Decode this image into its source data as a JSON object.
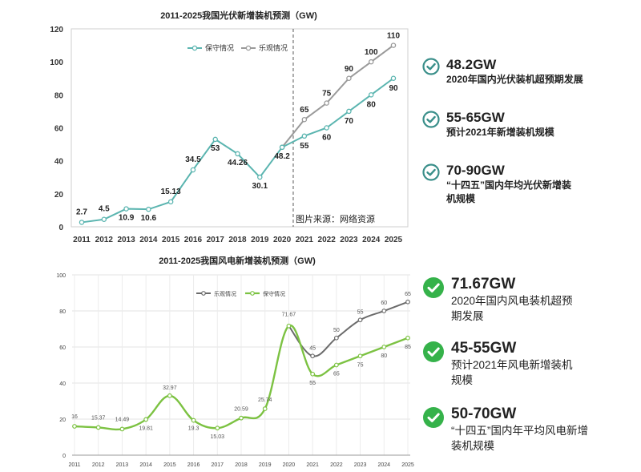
{
  "chart_data": [
    {
      "type": "line",
      "title": "2011-2025我国光伏新增装机预测（GW)",
      "categories": [
        "2011",
        "2012",
        "2013",
        "2014",
        "2015",
        "2016",
        "2017",
        "2018",
        "2019",
        "2020",
        "2021",
        "2022",
        "2023",
        "2024",
        "2025"
      ],
      "ylim": [
        0,
        120
      ],
      "yticks": [
        0,
        20,
        40,
        60,
        80,
        100,
        120
      ],
      "series": [
        {
          "name": "保守情况",
          "color": "#5bb5b0",
          "values": [
            2.7,
            4.5,
            10.9,
            10.6,
            15.13,
            34.5,
            53,
            44.26,
            30.1,
            48.2,
            55,
            60,
            70,
            80,
            90
          ]
        },
        {
          "name": "乐观情况",
          "color": "#9a9a9a",
          "values": [
            null,
            null,
            null,
            null,
            null,
            null,
            null,
            null,
            null,
            48.2,
            65,
            75,
            90,
            100,
            110
          ]
        }
      ],
      "labels": [
        "2.7",
        "4.5",
        "10.9",
        "10.6",
        "15.13",
        "34.5",
        "53",
        "44.26",
        "30.1",
        "48.2",
        "55",
        "60",
        "70",
        "80",
        "90",
        "65",
        "75",
        "90",
        "100",
        "110"
      ],
      "annotation": "图片来源：网络资源",
      "grid": false
    },
    {
      "type": "line",
      "title": "2011-2025我国风电新增装机预测（GW)",
      "categories": [
        "2011",
        "2012",
        "2013",
        "2014",
        "2015",
        "2016",
        "2017",
        "2018",
        "2019",
        "2020",
        "2021",
        "2022",
        "2023",
        "2024",
        "2025"
      ],
      "ylim": [
        0,
        100
      ],
      "yticks": [
        0,
        20,
        40,
        60,
        80,
        100
      ],
      "series": [
        {
          "name": "乐观情况",
          "color": "#6b6b6b",
          "values": [
            null,
            null,
            null,
            null,
            null,
            null,
            null,
            null,
            null,
            71.67,
            55,
            65,
            75,
            80,
            85
          ]
        },
        {
          "name": "保守情况",
          "color": "#7cc242",
          "values": [
            16,
            15.37,
            14.49,
            19.81,
            32.97,
            19.3,
            15.03,
            20.59,
            25.74,
            71.67,
            45,
            50,
            55,
            60,
            65
          ]
        }
      ],
      "labels": [
        "16",
        "15.37",
        "14.49",
        "19.81",
        "32.97",
        "19.3",
        "15.03",
        "20.59",
        "25.74",
        "71.67",
        "55",
        "65",
        "75",
        "80",
        "85",
        "45",
        "50",
        "55",
        "60",
        "65"
      ],
      "grid": true
    }
  ],
  "notes_solar": [
    {
      "value": "48.2GW",
      "desc": "2020年国内光伏装机超预期发展"
    },
    {
      "value": "55-65GW",
      "desc": "预计2021年新增装机规模"
    },
    {
      "value": "70-90GW",
      "desc": "“十四五”国内年均光伏新增装机规模"
    }
  ],
  "notes_wind": [
    {
      "value": "71.67GW",
      "desc": "2020年国内风电装机超预期发展"
    },
    {
      "value": "45-55GW",
      "desc": "预计2021年风电新增装机规模"
    },
    {
      "value": "50-70GW",
      "desc": "“十四五”国内年平均风电新增装机规模"
    }
  ],
  "colors": {
    "solar_check": "#3a8f8a",
    "wind_check": "#35b24a"
  },
  "icons": {
    "check": "check-circle-icon"
  }
}
